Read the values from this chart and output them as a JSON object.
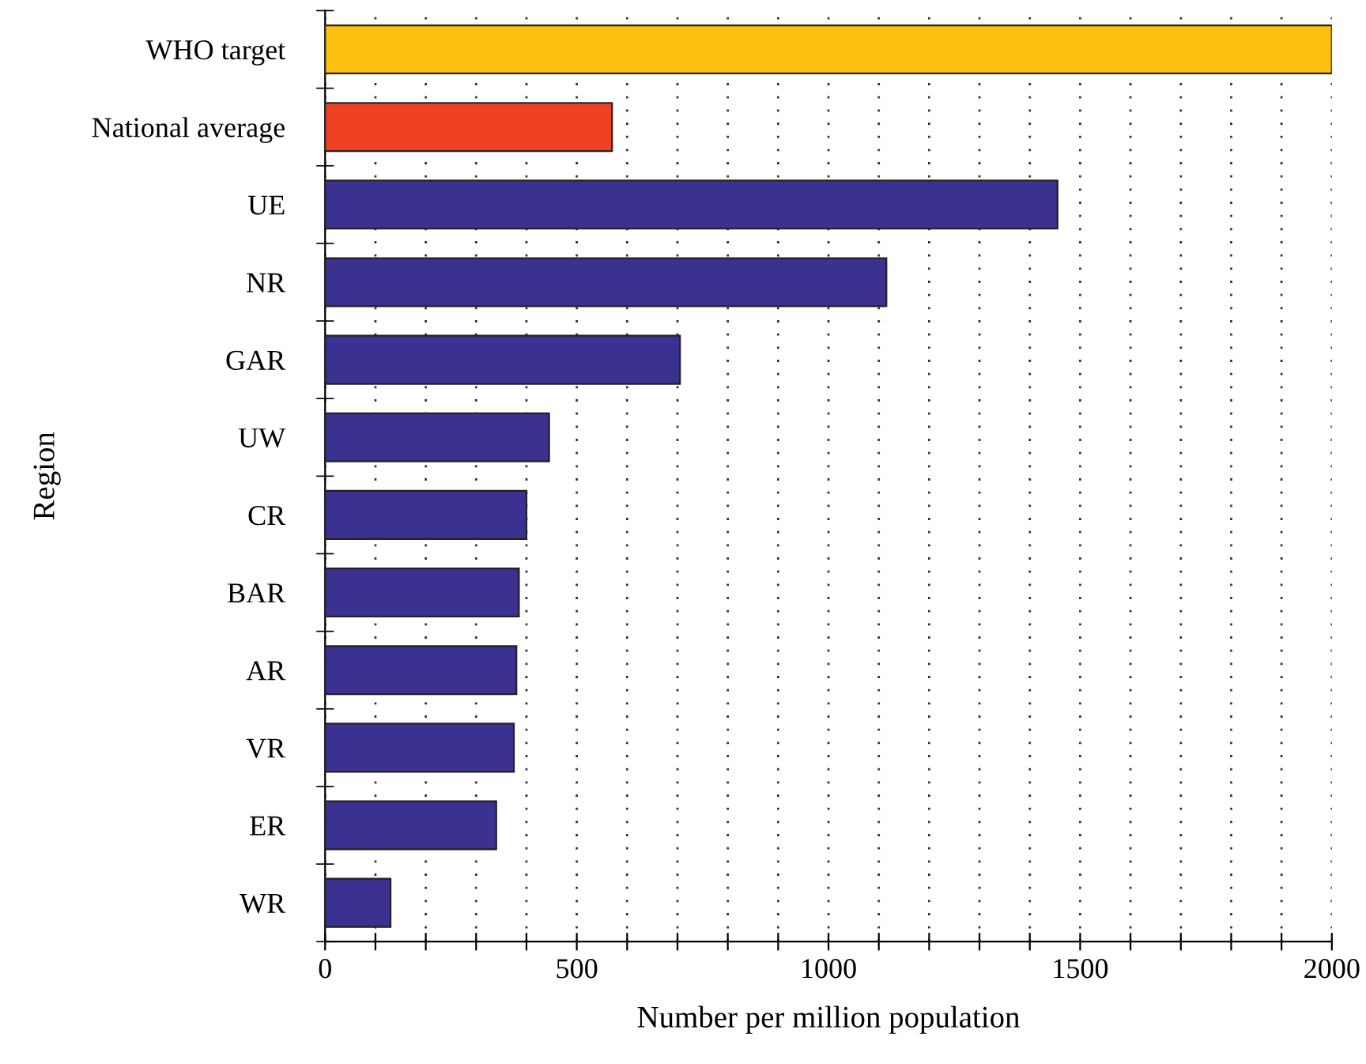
{
  "chart_data": {
    "type": "bar",
    "orientation": "horizontal",
    "xlabel": "Number per million population",
    "ylabel": "Region",
    "categories": [
      "WHO target",
      "National average",
      "UE",
      "NR",
      "GAR",
      "UW",
      "CR",
      "BAR",
      "AR",
      "VR",
      "ER",
      "WR"
    ],
    "values": [
      2000,
      570,
      1455,
      1115,
      705,
      445,
      400,
      385,
      380,
      375,
      340,
      130
    ],
    "colors": [
      "#fdc010",
      "#ef4123",
      "#3a3190",
      "#3a3190",
      "#3a3190",
      "#3a3190",
      "#3a3190",
      "#3a3190",
      "#3a3190",
      "#3a3190",
      "#3a3190",
      "#3a3190"
    ],
    "xlim": [
      0,
      2000
    ],
    "xticks": [
      0,
      {
        "value": 100,
        "label": null
      },
      {
        "value": 200,
        "label": null
      },
      {
        "value": 300,
        "label": null
      },
      {
        "value": 400,
        "label": null
      },
      500,
      {
        "value": 600,
        "label": null
      },
      {
        "value": 700,
        "label": null
      },
      {
        "value": 800,
        "label": null
      },
      {
        "value": 900,
        "label": null
      },
      1000,
      {
        "value": 1100,
        "label": null
      },
      {
        "value": 1200,
        "label": null
      },
      {
        "value": 1300,
        "label": null
      },
      {
        "value": 1400,
        "label": null
      },
      1500,
      {
        "value": 1600,
        "label": null
      },
      {
        "value": 1700,
        "label": null
      },
      {
        "value": 1800,
        "label": null
      },
      {
        "value": 1900,
        "label": null
      },
      2000
    ],
    "grid": "x",
    "legend": false
  }
}
